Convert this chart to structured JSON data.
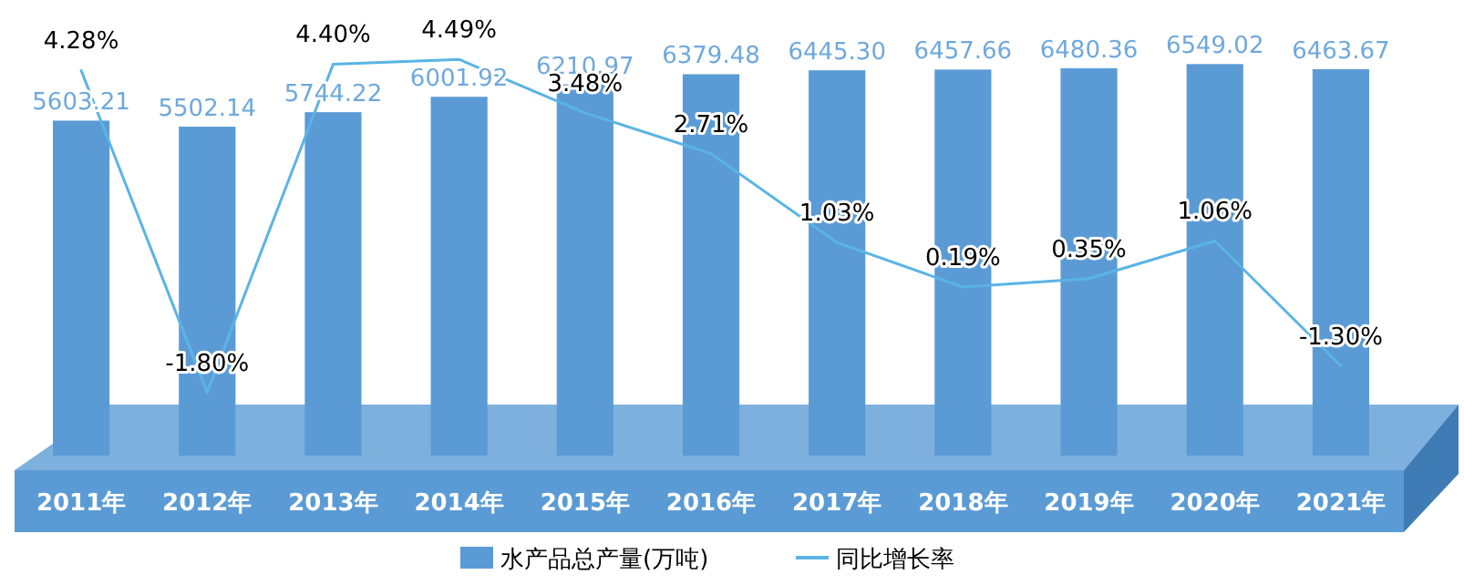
{
  "chart_data": {
    "type": "bar",
    "categories": [
      "2011年",
      "2012年",
      "2013年",
      "2014年",
      "2015年",
      "2016年",
      "2017年",
      "2018年",
      "2019年",
      "2020年",
      "2021年"
    ],
    "series": [
      {
        "name": "水产品总产量(万吨)",
        "color": "#5b9bd5",
        "values": [
          5603.21,
          5502.14,
          5744.22,
          6001.92,
          6210.97,
          6379.48,
          6445.3,
          6457.66,
          6480.36,
          6549.02,
          6463.67
        ],
        "value_labels": [
          "5603.21",
          "5502.14",
          "5744.22",
          "6001.92",
          "6210.97",
          "6379.48",
          "6445.30",
          "6457.66",
          "6480.36",
          "6549.02",
          "6463.67"
        ]
      },
      {
        "name": "同比增长率",
        "type": "line",
        "axis": "y2",
        "color": "#5ab4e5",
        "values": [
          4.28,
          -1.8,
          4.4,
          4.49,
          3.48,
          2.71,
          1.03,
          0.19,
          0.35,
          1.06,
          -1.3
        ],
        "value_labels": [
          "4.28%",
          "-1.80%",
          "4.40%",
          "4.49%",
          "3.48%",
          "2.71%",
          "1.03%",
          "0.19%",
          "0.35%",
          "1.06%",
          "-1.30%"
        ]
      }
    ],
    "tick_labels": "x",
    "legend": "bottom",
    "grid": false,
    "marker": "none",
    "line_style": "solid"
  }
}
